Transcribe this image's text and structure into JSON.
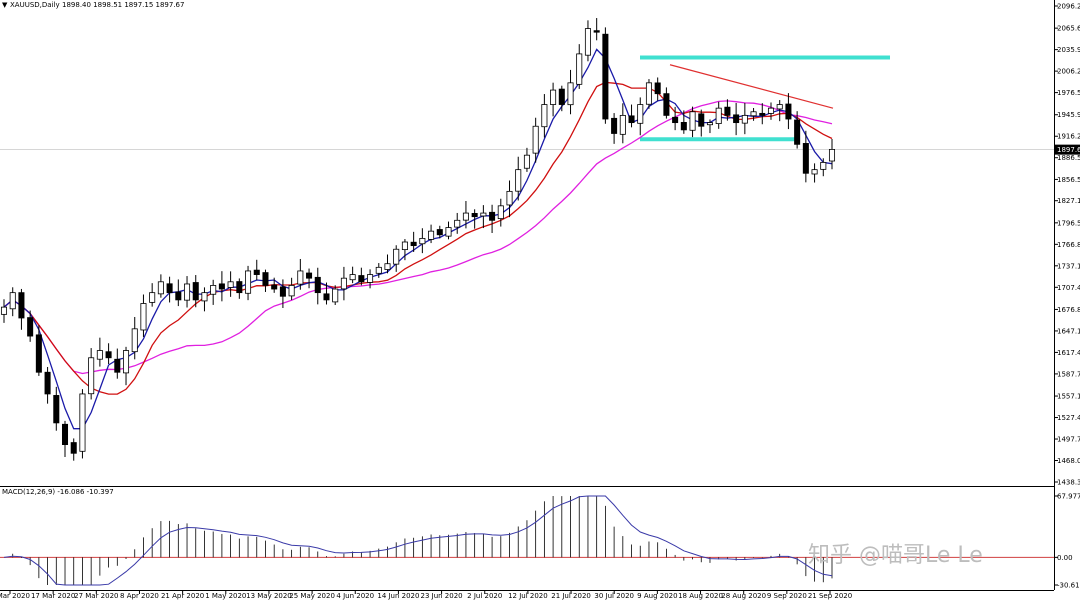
{
  "header": {
    "symbol": "XAUUSD,Daily",
    "ohlc": "1898.40 1898.51 1897.15 1897.67",
    "macd_label": "MACD(12,26,9) -16.086 -10.397"
  },
  "watermark": "知乎 @喵哥Le Le",
  "colors": {
    "bull_candle": "#ffffff",
    "bear_candle": "#000000",
    "candle_outline": "#000000",
    "ma_fast": "#1a1aa8",
    "ma_mid": "#d01010",
    "ma_slow": "#e020e0",
    "channel": "#40e0d0",
    "trendline": "#e03030",
    "macd_signal": "#3a3aa8",
    "macd_hist": "#000000"
  },
  "chart_data": [
    {
      "type": "candlestick",
      "symbol": "XAUUSD",
      "timeframe": "Daily",
      "price_scale_labels": [
        "2096.20",
        "2065.60",
        "2035.90",
        "2006.20",
        "1976.50",
        "1945.90",
        "1916.20",
        "1886.50",
        "1856.50",
        "1827.10",
        "1796.50",
        "1766.80",
        "1737.10",
        "1707.40",
        "1676.80",
        "1647.10",
        "1617.40",
        "1587.70",
        "1557.10",
        "1527.40",
        "1497.70",
        "1468.00",
        "1438.30"
      ],
      "current_price_label": "1897.67",
      "ylim": [
        1438.3,
        2096.2
      ],
      "date_labels": [
        "5 Mar 2020",
        "17 Mar 2020",
        "27 Mar 2020",
        "8 Apr 2020",
        "21 Apr 2020",
        "1 May 2020",
        "13 May 2020",
        "25 May 2020",
        "4 Jun 2020",
        "14 Jun 2020",
        "23 Jun 2020",
        "2 Jul 2020",
        "12 Jul 2020",
        "21 Jul 2020",
        "30 Jul 2020",
        "9 Aug 2020",
        "18 Aug 2020",
        "28 Aug 2020",
        "9 Sep 2020",
        "21 Sep 2020"
      ],
      "close_path": [
        1680,
        1700,
        1665,
        1640,
        1590,
        1560,
        1520,
        1490,
        1478,
        1560,
        1610,
        1620,
        1610,
        1590,
        1620,
        1650,
        1685,
        1700,
        1715,
        1700,
        1690,
        1712,
        1690,
        1700,
        1710,
        1705,
        1715,
        1700,
        1730,
        1725,
        1710,
        1705,
        1695,
        1710,
        1730,
        1720,
        1700,
        1690,
        1705,
        1720,
        1725,
        1715,
        1725,
        1735,
        1740,
        1760,
        1770,
        1765,
        1775,
        1785,
        1780,
        1790,
        1800,
        1810,
        1805,
        1810,
        1800,
        1820,
        1840,
        1870,
        1890,
        1930,
        1960,
        1980,
        1960,
        1990,
        2030,
        2065,
        2060,
        1940,
        1920,
        1945,
        1935,
        1960,
        1990,
        1975,
        1945,
        1935,
        1925,
        1950,
        1930,
        1935,
        1955,
        1945,
        1935,
        1945,
        1950,
        1945,
        1955,
        1960,
        1940,
        1905,
        1865,
        1870,
        1880,
        1898
      ],
      "ma_fast_label": "blue moving average",
      "channel_upper": 2025,
      "channel_lower": 1912,
      "trendline_from": 2015,
      "trendline_to": 1955
    },
    {
      "type": "bar",
      "name": "MACD(12,26,9)",
      "values_label": "-16.086 -10.397",
      "scale_labels": [
        "67.977",
        "0.00",
        "-30.618"
      ],
      "ylim": [
        -30.618,
        67.977
      ]
    }
  ]
}
